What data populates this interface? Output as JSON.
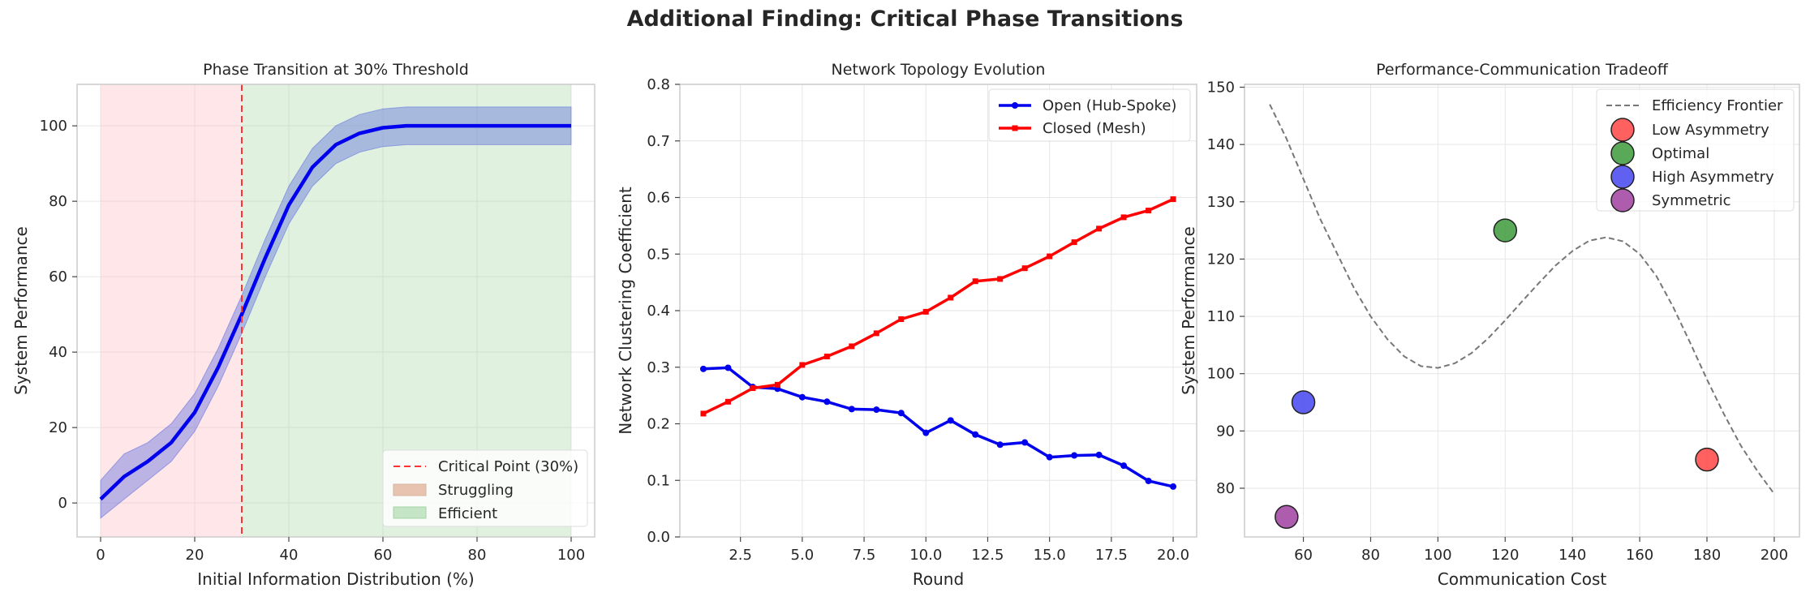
{
  "suptitle": "Additional Finding: Critical Phase Transitions",
  "chart_data": [
    {
      "type": "line",
      "title": "Phase Transition at 30% Threshold",
      "xlabel": "Initial Information Distribution (%)",
      "ylabel": "System Performance",
      "xlim": [
        -5,
        105
      ],
      "ylim": [
        -9,
        111
      ],
      "xticks": [
        0,
        20,
        40,
        60,
        80,
        100
      ],
      "yticks": [
        0,
        20,
        40,
        60,
        80,
        100
      ],
      "regions": [
        {
          "name": "Struggling",
          "x0": 0,
          "x1": 30,
          "color": "#ffb6c1"
        },
        {
          "name": "Efficient",
          "x0": 30,
          "x1": 100,
          "color": "#a5d6a7"
        }
      ],
      "critical_point": {
        "name": "Critical Point (30%)",
        "x": 30,
        "color": "#ff3333"
      },
      "series": [
        {
          "color": "#0000ee",
          "band_color": "#5566dd",
          "x": [
            0,
            5,
            10,
            15,
            20,
            25,
            30,
            35,
            40,
            45,
            50,
            55,
            60,
            65,
            70,
            75,
            80,
            85,
            90,
            95,
            100
          ],
          "y": [
            1,
            7,
            11,
            16,
            24,
            36,
            50,
            65,
            79,
            89,
            95,
            98,
            99.5,
            100,
            100,
            100,
            100,
            100,
            100,
            100,
            100
          ],
          "lower": [
            -4,
            1,
            6,
            11,
            19,
            31,
            45,
            60,
            74,
            84,
            90,
            93,
            94.5,
            95,
            95,
            95,
            95,
            95,
            95,
            95,
            95
          ],
          "upper": [
            6,
            13,
            16,
            21,
            29,
            41,
            55,
            70,
            84,
            94,
            100,
            103,
            104.5,
            105,
            105,
            105,
            105,
            105,
            105,
            105,
            105
          ]
        }
      ],
      "legend": {
        "position": "lower-right",
        "entries": [
          "Critical Point (30%)",
          "Struggling",
          "Efficient"
        ]
      }
    },
    {
      "type": "line",
      "title": "Network Topology Evolution",
      "xlabel": "Round",
      "ylabel": "Network Clustering Coefficient",
      "xlim": [
        0.05,
        20.95
      ],
      "ylim": [
        0,
        0.8
      ],
      "xticks": [
        2.5,
        5.0,
        7.5,
        10.0,
        12.5,
        15.0,
        17.5,
        20.0
      ],
      "xtick_labels": [
        "2.5",
        "5.0",
        "7.5",
        "10.0",
        "12.5",
        "15.0",
        "17.5",
        "20.0"
      ],
      "yticks": [
        0.0,
        0.1,
        0.2,
        0.3,
        0.4,
        0.5,
        0.6,
        0.7,
        0.8
      ],
      "ytick_labels": [
        "0.0",
        "0.1",
        "0.2",
        "0.3",
        "0.4",
        "0.5",
        "0.6",
        "0.7",
        "0.8"
      ],
      "x": [
        1,
        2,
        3,
        4,
        5,
        6,
        7,
        8,
        9,
        10,
        11,
        12,
        13,
        14,
        15,
        16,
        17,
        18,
        19,
        20
      ],
      "series": [
        {
          "name": "Open (Hub-Spoke)",
          "color": "#0000ee",
          "marker": "circle",
          "values": [
            0.297,
            0.299,
            0.265,
            0.262,
            0.247,
            0.239,
            0.226,
            0.225,
            0.219,
            0.184,
            0.206,
            0.181,
            0.163,
            0.167,
            0.141,
            0.144,
            0.145,
            0.126,
            0.099,
            0.089
          ]
        },
        {
          "name": "Closed (Mesh)",
          "color": "#ff0000",
          "marker": "square",
          "values": [
            0.218,
            0.239,
            0.263,
            0.269,
            0.304,
            0.319,
            0.337,
            0.36,
            0.385,
            0.398,
            0.423,
            0.452,
            0.456,
            0.475,
            0.496,
            0.521,
            0.545,
            0.565,
            0.577,
            0.597
          ]
        }
      ],
      "legend": {
        "position": "upper-right",
        "entries": [
          "Open (Hub-Spoke)",
          "Closed (Mesh)"
        ]
      }
    },
    {
      "type": "scatter",
      "title": "Performance-Communication Tradeoff",
      "xlabel": "Communication Cost",
      "ylabel": "System Performance",
      "xlim": [
        42.5,
        207.5
      ],
      "ylim": [
        71.5,
        150.5
      ],
      "xticks": [
        60,
        80,
        100,
        120,
        140,
        160,
        180,
        200
      ],
      "yticks": [
        80,
        90,
        100,
        110,
        120,
        130,
        140,
        150
      ],
      "frontier": {
        "name": "Efficiency Frontier",
        "color": "#777777",
        "x": [
          50,
          55,
          60,
          65,
          70,
          75,
          80,
          85,
          90,
          95,
          100,
          105,
          110,
          115,
          120,
          125,
          130,
          135,
          140,
          145,
          150,
          155,
          160,
          165,
          170,
          175,
          180,
          185,
          190,
          195,
          200
        ],
        "y": [
          147,
          141,
          134,
          127,
          121,
          115,
          110,
          106,
          103,
          101.3,
          101,
          101.8,
          103.6,
          106.2,
          109.3,
          112.6,
          115.8,
          118.9,
          121.4,
          123.2,
          123.8,
          123.1,
          120.9,
          117,
          111.6,
          105.4,
          99,
          93,
          87.5,
          83,
          79
        ]
      },
      "points": [
        {
          "name": "Low Asymmetry",
          "x": 180,
          "y": 85,
          "color": "#ff4444"
        },
        {
          "name": "Optimal",
          "x": 120,
          "y": 125,
          "color": "#3c9a3c"
        },
        {
          "name": "High Asymmetry",
          "x": 60,
          "y": 95,
          "color": "#4444ee"
        },
        {
          "name": "Symmetric",
          "x": 55,
          "y": 75,
          "color": "#a040a0"
        }
      ],
      "legend": {
        "position": "upper-right",
        "entries": [
          "Efficiency Frontier",
          "Low Asymmetry",
          "Optimal",
          "High Asymmetry",
          "Symmetric"
        ]
      }
    }
  ]
}
